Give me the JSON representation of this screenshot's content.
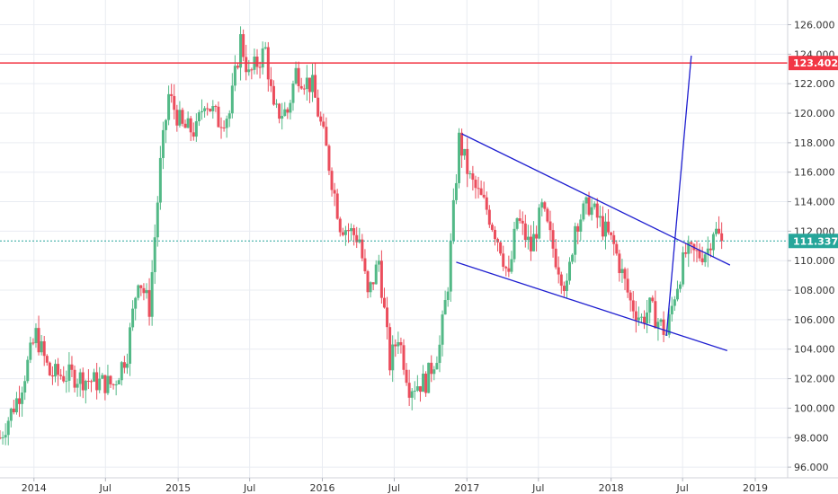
{
  "chart_data": {
    "type": "candlestick",
    "instrument_note": "",
    "ylim": [
      95.0,
      127.0
    ],
    "y_ticks": [
      "96.000",
      "98.000",
      "100.000",
      "102.000",
      "104.000",
      "106.000",
      "108.000",
      "110.000",
      "112.000",
      "114.000",
      "116.000",
      "118.000",
      "120.000",
      "122.000",
      "124.000",
      "126.000"
    ],
    "x_ticks": [
      "2014",
      "Jul",
      "2015",
      "Jul",
      "2016",
      "Jul",
      "2017",
      "Jul",
      "2018",
      "Jul",
      "2019"
    ],
    "x_tick_dates": [
      "2014-01-01",
      "2014-07-01",
      "2015-01-01",
      "2015-07-01",
      "2016-01-01",
      "2016-07-01",
      "2017-01-01",
      "2017-07-01",
      "2018-01-01",
      "2018-07-01",
      "2019-01-01"
    ],
    "x_range": [
      "2013-10-07",
      "2019-06-01"
    ],
    "grid": true,
    "colors": {
      "up": "#53b987",
      "down": "#eb4d5c",
      "resistance": "#f23645",
      "price_line": "#26a69a",
      "trendline": "#1f1fd0",
      "grid": "#e9ecf2"
    },
    "horizontal_lines": [
      {
        "name": "resistance",
        "value": 123.402,
        "label": "123.402",
        "color": "#f23645"
      },
      {
        "name": "last-price",
        "value": 111.337,
        "label": "111.337",
        "color": "#26a69a",
        "dashed": true
      }
    ],
    "trendlines": [
      {
        "name": "channel-upper",
        "from": [
          "2016-12-19",
          118.6
        ],
        "to": [
          "2018-10-29",
          109.7
        ]
      },
      {
        "name": "channel-lower",
        "from": [
          "2016-12-05",
          109.9
        ],
        "to": [
          "2018-10-22",
          103.9
        ]
      },
      {
        "name": "breakout-target",
        "from": [
          "2018-05-21",
          104.9
        ],
        "to": [
          "2018-07-23",
          123.9
        ]
      }
    ],
    "anchors": [
      [
        "2013-10-07",
        98.0
      ],
      [
        "2013-11-25",
        101.0
      ],
      [
        "2014-01-06",
        105.0
      ],
      [
        "2014-02-10",
        102.3
      ],
      [
        "2014-04-07",
        102.2
      ],
      [
        "2014-06-02",
        101.8
      ],
      [
        "2014-07-21",
        101.6
      ],
      [
        "2014-08-25",
        103.8
      ],
      [
        "2014-09-22",
        109.0
      ],
      [
        "2014-10-20",
        106.8
      ],
      [
        "2014-11-17",
        116.5
      ],
      [
        "2014-12-08",
        121.2
      ],
      [
        "2015-01-12",
        119.0
      ],
      [
        "2015-02-16",
        118.8
      ],
      [
        "2015-03-09",
        121.0
      ],
      [
        "2015-04-13",
        119.5
      ],
      [
        "2015-05-11",
        120.0
      ],
      [
        "2015-06-08",
        125.0
      ],
      [
        "2015-06-29",
        122.5
      ],
      [
        "2015-08-10",
        124.3
      ],
      [
        "2015-08-31",
        120.0
      ],
      [
        "2015-10-05",
        120.1
      ],
      [
        "2015-10-26",
        122.8
      ],
      [
        "2015-12-07",
        121.8
      ],
      [
        "2016-01-11",
        117.5
      ],
      [
        "2016-02-15",
        112.5
      ],
      [
        "2016-04-04",
        111.5
      ],
      [
        "2016-04-25",
        107.5
      ],
      [
        "2016-05-23",
        110.0
      ],
      [
        "2016-06-20",
        103.0
      ],
      [
        "2016-07-11",
        105.0
      ],
      [
        "2016-08-08",
        101.5
      ],
      [
        "2016-09-19",
        101.8
      ],
      [
        "2016-10-24",
        104.2
      ],
      [
        "2016-11-14",
        108.5
      ],
      [
        "2016-12-12",
        118.2
      ],
      [
        "2017-01-09",
        115.5
      ],
      [
        "2017-02-20",
        113.5
      ],
      [
        "2017-03-27",
        111.0
      ],
      [
        "2017-04-17",
        108.7
      ],
      [
        "2017-05-08",
        112.9
      ],
      [
        "2017-06-12",
        110.8
      ],
      [
        "2017-07-10",
        113.5
      ],
      [
        "2017-08-14",
        110.2
      ],
      [
        "2017-09-11",
        108.0
      ],
      [
        "2017-10-02",
        112.5
      ],
      [
        "2017-11-06",
        113.8
      ],
      [
        "2017-12-04",
        112.6
      ],
      [
        "2018-01-08",
        111.0
      ],
      [
        "2018-02-19",
        107.2
      ],
      [
        "2018-03-19",
        106.0
      ],
      [
        "2018-04-09",
        106.8
      ],
      [
        "2018-05-21",
        105.0
      ],
      [
        "2018-06-11",
        107.8
      ],
      [
        "2018-07-09",
        110.5
      ],
      [
        "2018-08-13",
        110.4
      ],
      [
        "2018-09-03",
        110.8
      ],
      [
        "2018-09-17",
        112.2
      ],
      [
        "2018-10-08",
        111.337
      ]
    ]
  }
}
